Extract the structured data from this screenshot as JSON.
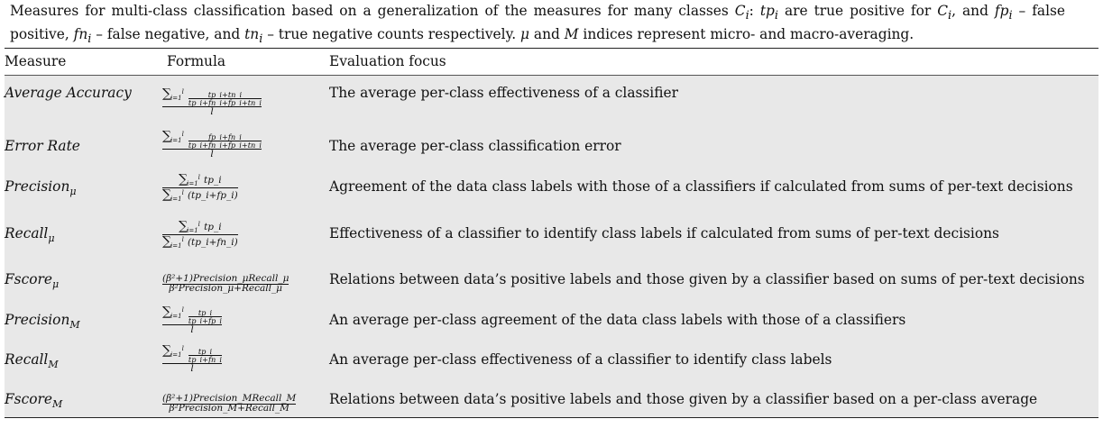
{
  "caption": {
    "part1": "Measures for multi-class classification based on a generalization of the measures for many classes ",
    "ci": "C",
    "ci_sub": "i",
    "part2": ": ",
    "tp": "tp",
    "part3": " are true positive for ",
    "part4": ", and ",
    "fp": "fp",
    "part5": " – false positive, ",
    "fn": "fn",
    "part6": " – false negative, and ",
    "tn": "tn",
    "part7": " – true negative counts respectively. ",
    "mu": "μ",
    "part8": " and ",
    "M": "M",
    "part9": " indices represent micro- and macro-averaging."
  },
  "headers": {
    "measure": "Measure",
    "formula": "Formula",
    "focus": "Evaluation focus"
  },
  "rows": [
    {
      "measure": "Average Accuracy",
      "sub": "",
      "focus": "The average per-class effectiveness of a classifier"
    },
    {
      "measure": "Error Rate",
      "sub": "",
      "focus": "The average per-class classification error"
    },
    {
      "measure": "Precision",
      "sub": "μ",
      "focus": "Agreement of the data class labels with those of a classifiers if calculated from sums of per-text decisions"
    },
    {
      "measure": "Recall",
      "sub": "μ",
      "focus": "Effectiveness of a classifier to identify class labels if calculated from sums of per-text decisions"
    },
    {
      "measure": "Fscore",
      "sub": "μ",
      "focus": "Relations between data’s positive labels and those given by a classifier based on sums of per-text decisions"
    },
    {
      "measure": "Precision",
      "sub": "M",
      "focus": "An average per-class agreement of the data class labels with those of a classifiers"
    },
    {
      "measure": "Recall",
      "sub": "M",
      "focus": "An average per-class effectiveness of a classifier to identify class labels"
    },
    {
      "measure": "Fscore",
      "sub": "M",
      "focus": "Relations between data’s positive labels and those given by a classifier based on a per-class average"
    }
  ],
  "formulas": {
    "sum": "∑",
    "upper": "l",
    "lower": "i=1",
    "l": "l",
    "acc_num": "tp_i+tn_i",
    "acc_den": "tp_i+fn_i+fp_i+tn_i",
    "err_num": "fp_i+fn_i",
    "err_den": "tp_i+fn_i+fp_i+tn_i",
    "prec_micro_num": "tp_i",
    "prec_micro_den": "(tp_i+fp_i)",
    "rec_micro_num": "tp_i",
    "rec_micro_den": "(tp_i+fn_i)",
    "fscore_micro_num": "(β²+1)Precision_μRecall_μ",
    "fscore_micro_den": "β²Precision_μ+Recall_μ",
    "prec_macro_num": "tp_i",
    "prec_macro_den": "tp_i+fp_i",
    "rec_macro_num": "tp_i",
    "rec_macro_den": "tp_i+fn_i",
    "fscore_macro_num": "(β²+1)Precision_MRecall_M",
    "fscore_macro_den": "β²Precision_M+Recall_M"
  }
}
